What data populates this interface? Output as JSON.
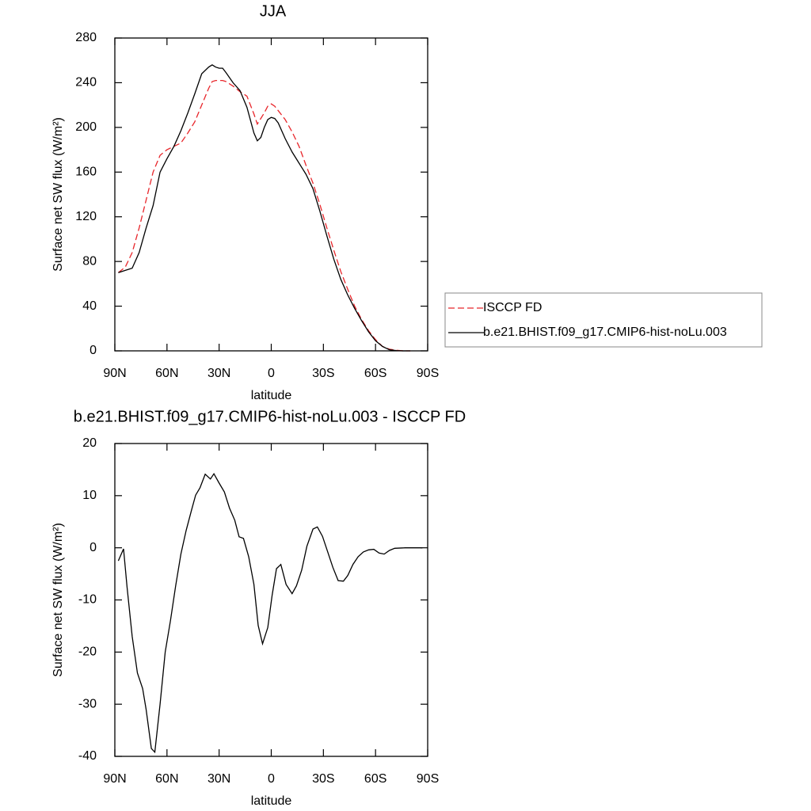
{
  "chart_data": [
    {
      "type": "line",
      "title": "JJA",
      "x_label": "latitude",
      "y_label": "Surface net SW flux (W/m²)",
      "x": [
        88,
        84,
        80,
        76,
        72,
        68,
        64,
        60,
        56,
        52,
        48,
        44,
        40,
        36,
        34,
        32,
        30,
        28,
        26,
        22,
        18,
        14,
        10,
        8,
        6,
        4,
        2,
        0,
        -2,
        -4,
        -8,
        -12,
        -16,
        -20,
        -24,
        -28,
        -32,
        -36,
        -40,
        -44,
        -48,
        -52,
        -56,
        -60,
        -64,
        -68,
        -72,
        -76,
        -80
      ],
      "series": [
        {
          "name": "ISCCP FD",
          "color": "#e8262b",
          "dashed": true,
          "values": [
            70,
            75,
            88,
            110,
            135,
            160,
            175,
            180,
            183,
            186,
            195,
            205,
            220,
            235,
            241,
            242,
            242,
            242,
            241,
            237,
            232,
            228,
            212,
            203,
            208,
            213,
            219,
            221,
            219,
            215,
            207,
            196,
            183,
            166,
            150,
            131,
            110,
            90,
            71,
            55,
            40,
            28,
            18,
            10,
            4,
            1.5,
            0.5,
            0,
            0
          ]
        },
        {
          "name": "b.e21.BHIST.f09_g17.CMIP6-hist-noLu.003",
          "color": "#000000",
          "dashed": false,
          "values": [
            70,
            72,
            74,
            88,
            110,
            130,
            160,
            172,
            183,
            197,
            213,
            230,
            248,
            254,
            256,
            254,
            253,
            253,
            249,
            240,
            233,
            218,
            195,
            188,
            191,
            200,
            207,
            209,
            208,
            204,
            190,
            178,
            168,
            158,
            145,
            125,
            103,
            82,
            64,
            50,
            38,
            27,
            17,
            9,
            4,
            1,
            0.3,
            0,
            0
          ]
        }
      ],
      "xlim": [
        90,
        -90
      ],
      "xticks": [
        {
          "value": 90,
          "label": "90N"
        },
        {
          "value": 60,
          "label": "60N"
        },
        {
          "value": 30,
          "label": "30N"
        },
        0,
        {
          "value": -30,
          "label": "30S"
        },
        {
          "value": -60,
          "label": "60S"
        },
        {
          "value": -90,
          "label": "90S"
        }
      ],
      "ylim": [
        0,
        280
      ],
      "yticks": [
        0,
        40,
        80,
        120,
        160,
        200,
        240,
        280
      ]
    },
    {
      "type": "line",
      "title": "b.e21.BHIST.f09_g17.CMIP6-hist-noLu.003 - ISCCP FD",
      "x_label": "latitude",
      "y_label": "Surface net SW flux (W/m²)",
      "x": [
        88,
        85,
        83,
        80,
        77,
        74,
        72,
        69,
        67,
        64,
        61,
        58,
        55,
        52,
        49,
        46,
        43.5,
        41,
        38,
        35,
        33,
        30,
        27,
        24,
        21,
        18.5,
        16,
        13,
        10,
        7.5,
        5,
        2,
        -0.5,
        -3,
        -5.5,
        -8.5,
        -12,
        -14.5,
        -17.5,
        -20.5,
        -24,
        -26.5,
        -29.5,
        -32.5,
        -35.5,
        -38.5,
        -41.5,
        -44,
        -47,
        -50,
        -53,
        -56,
        -59,
        -62,
        -65,
        -68,
        -71,
        -77,
        -87
      ],
      "values": [
        -2.5,
        -0.2,
        -7.5,
        -17,
        -24,
        -27,
        -31,
        -38.5,
        -39.2,
        -30,
        -20,
        -14,
        -7.3,
        -1.2,
        3.3,
        7.1,
        10.1,
        11.5,
        14.1,
        13.2,
        14.2,
        12.4,
        10.7,
        7.6,
        5.3,
        2.1,
        1.8,
        -1.7,
        -7,
        -14.9,
        -18.4,
        -15.3,
        -9.1,
        -4,
        -3.2,
        -7,
        -8.8,
        -7.3,
        -4.3,
        0.3,
        3.6,
        4,
        2.2,
        -0.8,
        -3.8,
        -6.3,
        -6.4,
        -5.3,
        -3.2,
        -1.7,
        -0.8,
        -0.4,
        -0.3,
        -1,
        -1.2,
        -0.5,
        -0.1,
        0,
        0
      ],
      "color": "#000000",
      "xlim": [
        90,
        -90
      ],
      "xticks": [
        {
          "value": 90,
          "label": "90N"
        },
        {
          "value": 60,
          "label": "60N"
        },
        {
          "value": 30,
          "label": "30N"
        },
        0,
        {
          "value": -30,
          "label": "30S"
        },
        {
          "value": -60,
          "label": "60S"
        },
        {
          "value": -90,
          "label": "90S"
        }
      ],
      "ylim": [
        -40,
        20
      ],
      "yticks": [
        -40,
        -30,
        -20,
        -10,
        0,
        10,
        20
      ]
    }
  ]
}
